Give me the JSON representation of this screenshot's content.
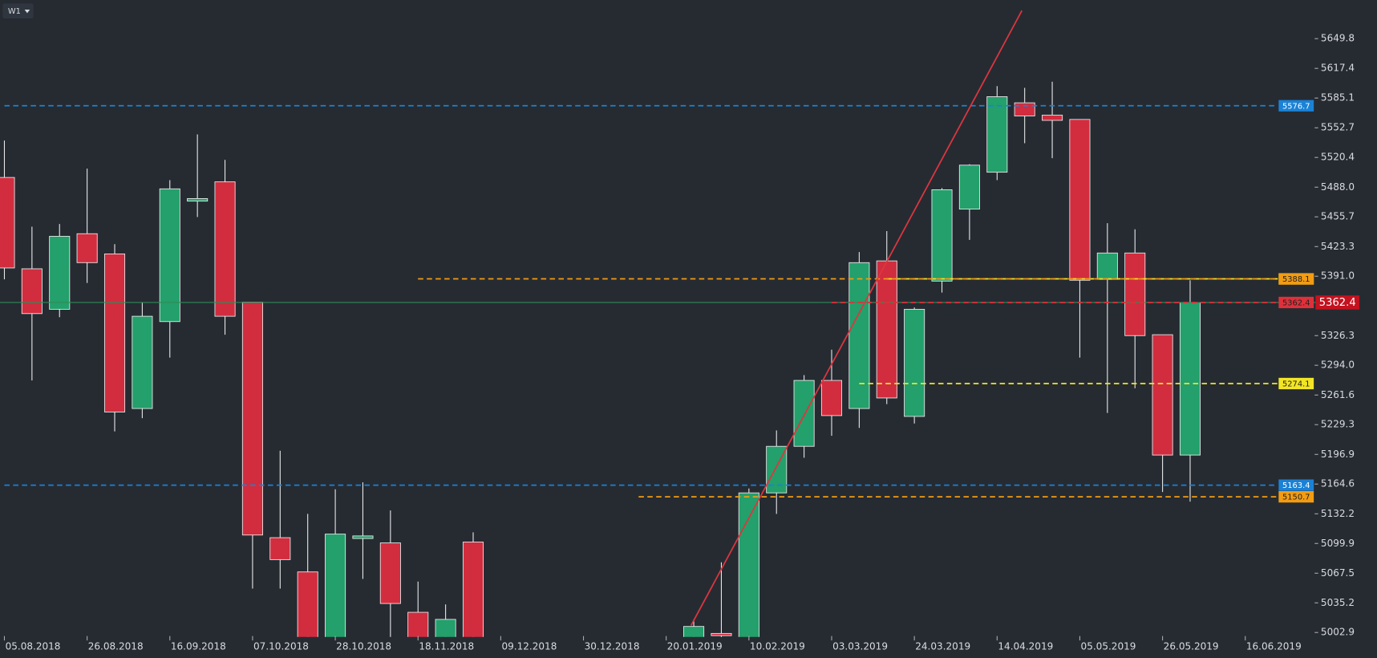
{
  "timeframe": "W1",
  "chart_data": {
    "type": "candlestick",
    "categories": [
      "05.08.2018",
      null,
      null,
      "26.08.2018",
      null,
      null,
      "16.09.2018",
      null,
      null,
      "07.10.2018",
      null,
      null,
      "28.10.2018",
      null,
      null,
      "18.11.2018",
      null,
      null,
      "09.12.2018",
      null,
      null,
      "30.12.2018",
      null,
      null,
      "20.01.2019",
      null,
      null,
      "10.02.2019",
      null,
      null,
      "03.03.2019",
      null,
      null,
      "24.03.2019",
      null,
      null,
      "14.04.2019",
      null,
      null,
      "05.05.2019",
      null,
      null,
      "26.05.2019",
      null,
      null,
      "16.06.2019"
    ],
    "open": [
      5498.6,
      5399.1,
      5355.0,
      5437.3,
      5415.3,
      5246.9,
      5341.6,
      5472.8,
      5493.8,
      5362.7,
      5106.2,
      5068.9,
      4985,
      5105.3,
      5100.5,
      5024.9,
      4990,
      5101.4,
      null,
      null,
      null,
      null,
      null,
      null,
      null,
      4990,
      5001.9,
      4990,
      5155.0,
      5205.7,
      5277.5,
      5246.9,
      5407.7,
      5238.3,
      5385.7,
      5464.1,
      5504.3,
      5579.9,
      5566.5,
      5561.8,
      5387.6,
      5416.3,
      5327.3,
      5196.2,
      null,
      null
    ],
    "high": [
      5538.8,
      5445.0,
      5447.9,
      5508.2,
      5425.9,
      5362.7,
      5495.7,
      5545.5,
      5517.7,
      5362.7,
      5200.9,
      5132.1,
      5158.9,
      5166.5,
      5135.9,
      5058.4,
      5033.5,
      5112.0,
      null,
      null,
      null,
      null,
      null,
      null,
      null,
      5017.2,
      5079.4,
      5159.8,
      5223.0,
      5283.3,
      5311.0,
      5417.3,
      5440.2,
      5357.0,
      5487.0,
      5513.0,
      5598.1,
      5596.2,
      5602.9,
      5561.8,
      5448.8,
      5442.1,
      5327.3,
      5386.6,
      null,
      null
    ],
    "low": [
      5387.6,
      5277.5,
      5346.4,
      5383.7,
      5222.0,
      5236.4,
      5302.4,
      5455.5,
      5327.3,
      5050.7,
      5050.7,
      4960,
      4970,
      5061.3,
      4995,
      4960,
      4975,
      4940,
      null,
      null,
      null,
      null,
      null,
      null,
      null,
      4980,
      4985,
      4985,
      5132.1,
      5193.3,
      5217.2,
      5225.8,
      5251.7,
      5230.6,
      5373.2,
      5430.6,
      5495.7,
      5535.9,
      5519.6,
      5302.4,
      5242.1,
      5268.9,
      5156.0,
      5145.5,
      null,
      null
    ],
    "close": [
      5400.0,
      5350.3,
      5434.5,
      5405.8,
      5243.1,
      5347.4,
      5486.2,
      5475.6,
      5347.4,
      5109.1,
      5082.3,
      4990,
      5110.1,
      5108.1,
      5034.5,
      4980,
      5017.2,
      4960,
      null,
      null,
      null,
      null,
      null,
      null,
      null,
      5009.5,
      4999.5,
      5155.0,
      5205.7,
      5277.5,
      5239.2,
      5405.8,
      5258.4,
      5355.0,
      5485.2,
      5512.0,
      5586.6,
      5565.6,
      5560.8,
      5386.6,
      5416.3,
      5326.3,
      5196.2,
      5362.4,
      null,
      null
    ],
    "up_color": "#23a06b",
    "down_color": "#d12d3f",
    "ylim": [
      4998.1,
      5691.9
    ],
    "yticks": [
      5649.8,
      5617.4,
      5585.1,
      5552.7,
      5520.4,
      {
        "value": 5488,
        "label": "5488.0"
      },
      5455.7,
      5423.3,
      {
        "value": 5391,
        "label": "5391.0"
      },
      5326.3,
      {
        "value": 5294,
        "label": "5294.0"
      },
      5261.6,
      5229.3,
      5196.9,
      5164.6,
      5132.2,
      5099.9,
      5067.5,
      5035.2,
      5002.9
    ],
    "levels": [
      {
        "value": 5576.7,
        "color": "#1a82d6",
        "from": 0
      },
      {
        "value": 5388.1,
        "color": "#f2e526",
        "from": 32
      },
      {
        "value": 5388.1,
        "color": "#f39c12",
        "from": 15
      },
      {
        "value": 5362.4,
        "color": "#e0303a",
        "from": 30
      },
      {
        "value": 5274.1,
        "color": "#f2e526",
        "from": 31
      },
      {
        "value": 5163.4,
        "color": "#1a82d6",
        "from": 0
      },
      {
        "value": 5150.7,
        "color": "#f39c12",
        "from": 23
      }
    ],
    "last_price": 5362.4,
    "trendline": {
      "x": [
        24.9,
        36.9
      ],
      "y": [
        5010.5,
        5680.4
      ],
      "color": "#e0353f"
    }
  }
}
